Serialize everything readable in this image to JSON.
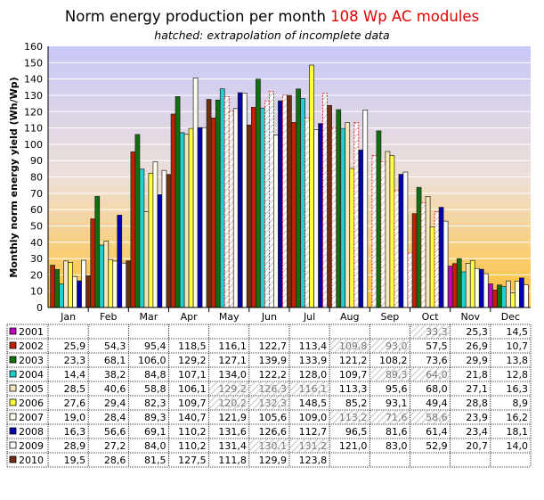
{
  "chart_data": {
    "type": "bar",
    "title": "Norm energy production per month ",
    "title_highlight": "108 Wp AC modules",
    "subtitle": "hatched: extrapolation of incomplete data",
    "ylabel": "Monthly norm energy yield (Wh/Wp)",
    "xlabel": "",
    "ylim": [
      0,
      160
    ],
    "yticks": [
      0,
      10,
      20,
      30,
      40,
      50,
      60,
      70,
      80,
      90,
      100,
      110,
      120,
      130,
      140,
      150,
      160
    ],
    "grid": true,
    "categories": [
      "Jan",
      "Feb",
      "Mar",
      "Apr",
      "May",
      "Jun",
      "Jul",
      "Aug",
      "Sep",
      "Oct",
      "Nov",
      "Dec"
    ],
    "series": [
      {
        "name": "2001",
        "color": "#c000c0",
        "values": [
          null,
          null,
          null,
          null,
          null,
          null,
          null,
          null,
          null,
          33.3,
          25.3,
          14.5
        ],
        "labels": [
          "",
          "",
          "",
          "",
          "",
          "",
          "",
          "",
          "",
          "33,3",
          "25,3",
          "14,5"
        ],
        "hatched": [
          false,
          false,
          false,
          false,
          false,
          false,
          false,
          false,
          false,
          true,
          false,
          false
        ]
      },
      {
        "name": "2002",
        "color": "#c02000",
        "values": [
          25.9,
          54.3,
          95.4,
          118.5,
          116.1,
          122.7,
          113.4,
          109.8,
          93.0,
          57.5,
          26.9,
          10.7
        ],
        "labels": [
          "25,9",
          "54,3",
          "95,4",
          "118,5",
          "116,1",
          "122,7",
          "113,4",
          "109,8",
          "93,0",
          "57,5",
          "26,9",
          "10,7"
        ],
        "hatched": [
          false,
          false,
          false,
          false,
          false,
          false,
          false,
          true,
          true,
          false,
          false,
          false
        ]
      },
      {
        "name": "2003",
        "color": "#107010",
        "values": [
          23.3,
          68.1,
          106.0,
          129.2,
          127.1,
          139.9,
          133.9,
          121.2,
          108.2,
          73.6,
          29.9,
          13.8
        ],
        "labels": [
          "23,3",
          "68,1",
          "106,0",
          "129,2",
          "127,1",
          "139,9",
          "133,9",
          "121,2",
          "108,2",
          "73,6",
          "29,9",
          "13,8"
        ],
        "hatched": [
          false,
          false,
          false,
          false,
          false,
          false,
          false,
          false,
          false,
          false,
          false,
          false
        ]
      },
      {
        "name": "2004",
        "color": "#20d0d0",
        "values": [
          14.4,
          38.2,
          84.8,
          107.1,
          134.0,
          122.2,
          128.0,
          109.7,
          89.3,
          64.0,
          21.8,
          12.8
        ],
        "labels": [
          "14,4",
          "38,2",
          "84,8",
          "107,1",
          "134,0",
          "122,2",
          "128,0",
          "109,7",
          "89,3",
          "64,0",
          "21,8",
          "12,8"
        ],
        "hatched": [
          false,
          false,
          false,
          false,
          false,
          false,
          false,
          false,
          true,
          true,
          false,
          false
        ]
      },
      {
        "name": "2005",
        "color": "#f8e8b8",
        "values": [
          28.5,
          40.6,
          58.8,
          106.1,
          129.2,
          126.3,
          116.1,
          113.3,
          95.6,
          68.0,
          27.1,
          16.3
        ],
        "labels": [
          "28,5",
          "40,6",
          "58,8",
          "106,1",
          "129,2",
          "126,3",
          "116,1",
          "113,3",
          "95,6",
          "68,0",
          "27,1",
          "16,3"
        ],
        "hatched": [
          false,
          false,
          false,
          false,
          true,
          true,
          true,
          false,
          false,
          false,
          false,
          false
        ]
      },
      {
        "name": "2006",
        "color": "#ffff40",
        "values": [
          27.6,
          29.4,
          82.3,
          109.7,
          120.2,
          132.3,
          148.5,
          85.2,
          93.1,
          49.4,
          28.8,
          8.9
        ],
        "labels": [
          "27,6",
          "29,4",
          "82,3",
          "109,7",
          "120,2",
          "132,3",
          "148,5",
          "85,2",
          "93,1",
          "49,4",
          "28,8",
          "8,9"
        ],
        "hatched": [
          false,
          false,
          false,
          false,
          true,
          true,
          false,
          false,
          false,
          false,
          false,
          false
        ]
      },
      {
        "name": "2007",
        "color": "#fffff0",
        "values": [
          19.0,
          28.4,
          89.3,
          140.7,
          121.9,
          105.6,
          109.0,
          113.2,
          71.6,
          58.6,
          23.9,
          16.2
        ],
        "labels": [
          "19,0",
          "28,4",
          "89,3",
          "140,7",
          "121,9",
          "105,6",
          "109,0",
          "113,2",
          "71,6",
          "58,6",
          "23,9",
          "16,2"
        ],
        "hatched": [
          false,
          false,
          false,
          false,
          false,
          false,
          false,
          true,
          true,
          true,
          false,
          false
        ]
      },
      {
        "name": "2008",
        "color": "#0000b0",
        "values": [
          16.3,
          56.6,
          69.1,
          110.2,
          131.6,
          126.6,
          112.7,
          96.5,
          81.6,
          61.4,
          23.4,
          18.1
        ],
        "labels": [
          "16,3",
          "56,6",
          "69,1",
          "110,2",
          "131,6",
          "126,6",
          "112,7",
          "96,5",
          "81,6",
          "61,4",
          "23,4",
          "18,1"
        ],
        "hatched": [
          false,
          false,
          false,
          false,
          false,
          false,
          false,
          false,
          false,
          false,
          false,
          false
        ]
      },
      {
        "name": "2009",
        "color": "#ffffff",
        "values": [
          28.9,
          27.2,
          84.0,
          110.2,
          131.4,
          130.1,
          131.2,
          121.0,
          83.0,
          52.9,
          20.7,
          14.0
        ],
        "labels": [
          "28,9",
          "27,2",
          "84,0",
          "110,2",
          "131,4",
          "130,1",
          "131,2",
          "121,0",
          "83,0",
          "52,9",
          "20,7",
          "14,0"
        ],
        "hatched": [
          false,
          false,
          false,
          false,
          false,
          true,
          true,
          false,
          false,
          false,
          false,
          false
        ]
      },
      {
        "name": "2010",
        "color": "#703010",
        "values": [
          19.5,
          28.6,
          81.5,
          127.5,
          111.8,
          129.9,
          123.8,
          null,
          null,
          null,
          null,
          null
        ],
        "labels": [
          "19,5",
          "28,6",
          "81,5",
          "127,5",
          "111,8",
          "129,9",
          "123,8",
          "",
          "",
          "",
          "",
          ""
        ],
        "hatched": [
          false,
          false,
          false,
          false,
          false,
          false,
          false,
          false,
          false,
          false,
          false,
          false
        ]
      }
    ]
  }
}
